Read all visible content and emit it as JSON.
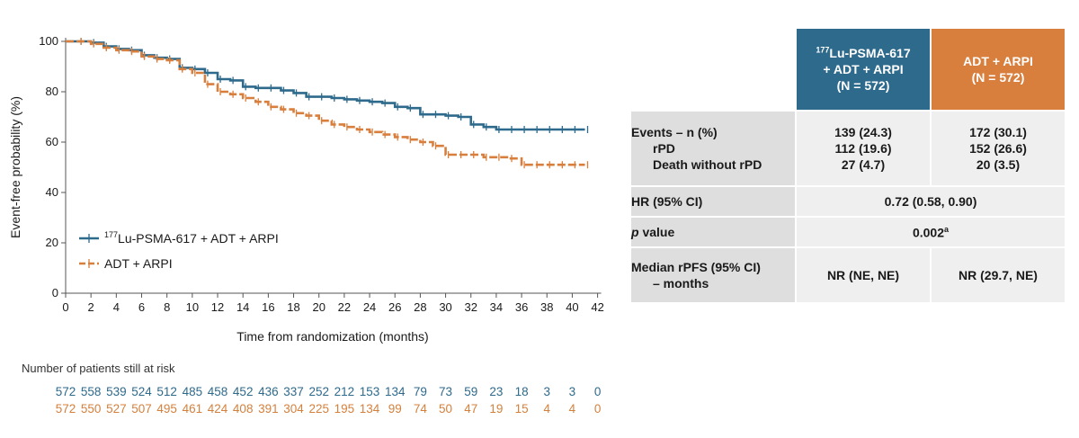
{
  "colors": {
    "lu": "#2e6a8c",
    "adt": "#d97f3d"
  },
  "chart_data": {
    "type": "line",
    "xlabel": "Time from randomization (months)",
    "ylabel": "Event-free probability (%)",
    "xlim": [
      0,
      42
    ],
    "ylim": [
      0,
      100
    ],
    "xticks": [
      0,
      2,
      4,
      6,
      8,
      10,
      12,
      14,
      16,
      18,
      20,
      22,
      24,
      26,
      28,
      30,
      32,
      34,
      36,
      38,
      40,
      42
    ],
    "yticks": [
      0,
      20,
      40,
      60,
      80,
      100
    ],
    "grid": false,
    "legend_position": "bottom-left",
    "series": [
      {
        "name_sup": "177",
        "name": "Lu-PSMA-617 + ADT + ARPI",
        "color": "#2e6a8c",
        "style": "solid",
        "x": [
          0,
          1,
          2,
          3,
          4,
          5,
          6,
          7,
          8,
          9,
          10,
          11,
          12,
          13,
          14,
          15,
          16,
          17,
          18,
          19,
          20,
          21,
          22,
          23,
          24,
          25,
          26,
          27,
          28,
          29,
          30,
          31,
          32,
          33,
          34,
          35,
          36,
          37,
          38,
          39,
          40,
          41
        ],
        "y": [
          100,
          100,
          99.5,
          98,
          97,
          96.5,
          94.5,
          93.5,
          93,
          89.5,
          89,
          87.5,
          85,
          84.5,
          82,
          81.5,
          81.5,
          80.5,
          79.5,
          78,
          78,
          77.5,
          77,
          76.5,
          76,
          75.5,
          74,
          73.5,
          71,
          71,
          70.5,
          70,
          67,
          66,
          65,
          65,
          65,
          65,
          65,
          65,
          65,
          65
        ]
      },
      {
        "name": "ADT + ARPI",
        "color": "#d97f3d",
        "style": "dashed",
        "x": [
          0,
          1,
          2,
          3,
          4,
          5,
          6,
          7,
          8,
          9,
          10,
          11,
          12,
          13,
          14,
          15,
          16,
          17,
          18,
          19,
          20,
          21,
          22,
          23,
          24,
          25,
          26,
          27,
          28,
          29,
          30,
          31,
          32,
          33,
          34,
          35,
          36,
          37,
          38,
          39,
          40,
          41
        ],
        "y": [
          100,
          100,
          99,
          97.5,
          96.5,
          96,
          94,
          93,
          92.5,
          89,
          87.5,
          83,
          80,
          79,
          77.5,
          76,
          74,
          73,
          71.5,
          70.5,
          68.5,
          67,
          66,
          65,
          64,
          63,
          62,
          61,
          60,
          58.5,
          55,
          55,
          55,
          54,
          54,
          53.5,
          51,
          51,
          51,
          51,
          51,
          51
        ]
      }
    ],
    "legend": [
      {
        "sup": "177",
        "label": "Lu-PSMA-617 + ADT + ARPI"
      },
      {
        "sup": "",
        "label": "ADT + ARPI"
      }
    ],
    "risk_table": {
      "title": "Number of patients still at risk",
      "months": [
        0,
        2,
        4,
        6,
        8,
        10,
        12,
        14,
        16,
        18,
        20,
        22,
        24,
        26,
        28,
        30,
        32,
        34,
        36,
        38,
        40,
        42
      ],
      "lu": [
        "572",
        "558",
        "539",
        "524",
        "512",
        "485",
        "458",
        "452",
        "436",
        "337",
        "252",
        "212",
        "153",
        "134",
        "79",
        "73",
        "59",
        "23",
        "18",
        "3",
        "3",
        "0"
      ],
      "adt": [
        "572",
        "550",
        "527",
        "507",
        "495",
        "461",
        "424",
        "408",
        "391",
        "304",
        "225",
        "195",
        "134",
        "99",
        "74",
        "50",
        "47",
        "19",
        "15",
        "4",
        "4",
        "0"
      ]
    }
  },
  "summary_table": {
    "header_lu_sup": "177",
    "header_lu_line1": "Lu-PSMA-617",
    "header_lu_line2": "+ ADT + ARPI",
    "header_lu_n": "(N = 572)",
    "header_adt_line1": "ADT + ARPI",
    "header_adt_n": "(N = 572)",
    "events_label": "Events – n (%)",
    "rpd_label": "rPD",
    "death_label": "Death without rPD",
    "events_lu": "139 (24.3)",
    "rpd_lu": "112 (19.6)",
    "death_lu": "27 (4.7)",
    "events_adt": "172 (30.1)",
    "rpd_adt": "152 (26.6)",
    "death_adt": "20 (3.5)",
    "hr_label": "HR (95% CI)",
    "hr_value": "0.72 (0.58, 0.90)",
    "p_label_italic": "p",
    "p_label_rest": " value",
    "p_value": "0.002",
    "p_value_sup": "a",
    "median_label_line1": "Median rPFS (95% CI)",
    "median_label_line2": "– months",
    "median_lu": "NR (NE, NE)",
    "median_adt": "NR (29.7, NE)"
  }
}
